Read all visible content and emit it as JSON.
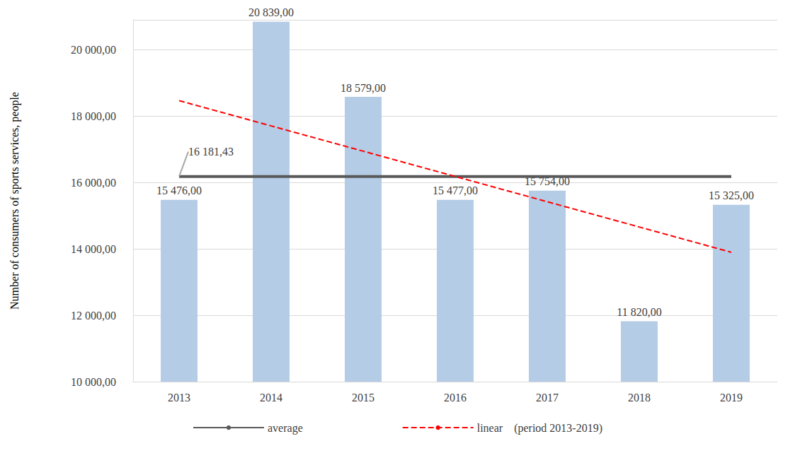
{
  "chart_data": {
    "type": "bar",
    "y_label": "Number of consumers of sports services, people",
    "categories": [
      "2013",
      "2014",
      "2015",
      "2016",
      "2017",
      "2018",
      "2019"
    ],
    "ylim": [
      10000,
      20900
    ],
    "yticks": [
      {
        "value": 10000,
        "label": "10 000,00"
      },
      {
        "value": 12000,
        "label": "12 000,00"
      },
      {
        "value": 14000,
        "label": "14 000,00"
      },
      {
        "value": 16000,
        "label": "16 000,00"
      },
      {
        "value": 18000,
        "label": "18 000,00"
      },
      {
        "value": 20000,
        "label": "20 000,00"
      }
    ],
    "grid": true,
    "legend": "bottom",
    "series": [
      {
        "type": "bar",
        "color": "#b4cce6",
        "data_labels": true,
        "values": [
          15476,
          20839,
          18579,
          15477,
          15754,
          11820,
          15325
        ],
        "value_labels": [
          "15 476,00",
          "20 839,00",
          "18 579,00",
          "15 477,00",
          "15 754,00",
          "11 820,00",
          "15 325,00"
        ]
      },
      {
        "name": "average",
        "type": "line",
        "color": "#595959",
        "line_style": "solid",
        "values": [
          16181.43,
          16181.43,
          16181.43,
          16181.43,
          16181.43,
          16181.43,
          16181.43
        ],
        "annotation": "16 181,43"
      },
      {
        "name": "linear    (period 2013-2019)",
        "type": "line",
        "color": "#ff0000",
        "line_style": "dashed",
        "values": [
          18465.3,
          17704.0,
          16942.7,
          16181.4,
          15420.1,
          14658.9,
          13897.6
        ]
      }
    ]
  }
}
